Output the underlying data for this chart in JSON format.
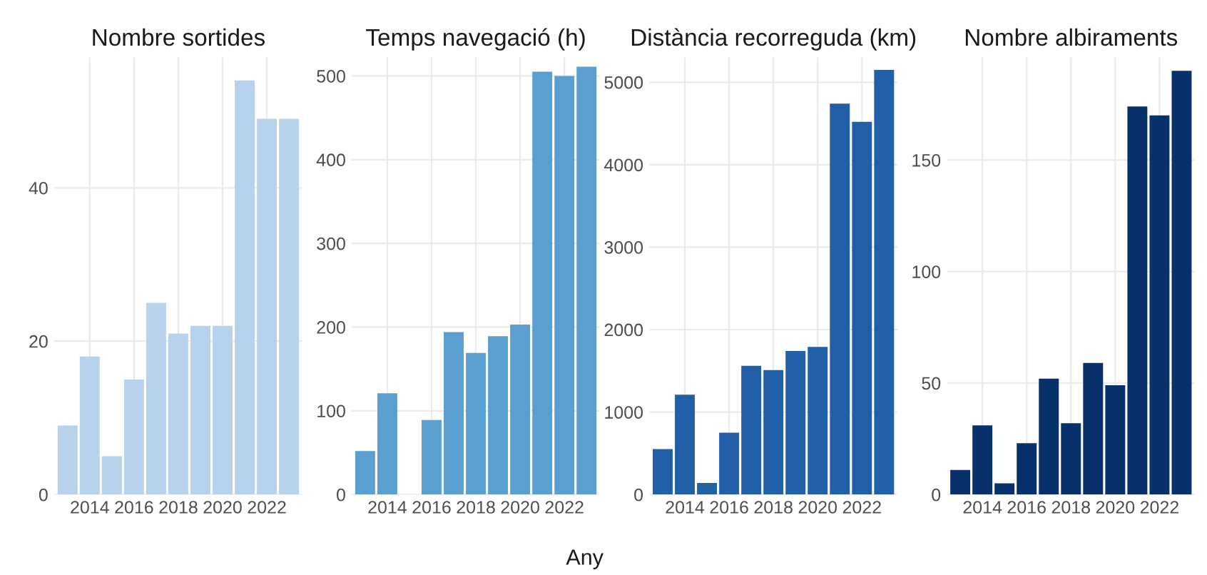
{
  "chart_data": [
    {
      "type": "bar",
      "title": "Nombre sortides",
      "x": [
        2013,
        2014,
        2015,
        2016,
        2017,
        2018,
        2019,
        2020,
        2021,
        2022,
        2023
      ],
      "series": [
        {
          "color": "#b9d2ec",
          "values": [
            9,
            18,
            5,
            15,
            25,
            21,
            22,
            22,
            54,
            49,
            49
          ]
        }
      ],
      "xlim": [
        2012.4,
        2023.6
      ],
      "xticks": [
        2014,
        2016,
        2018,
        2020,
        2022
      ],
      "ylim": [
        0,
        57
      ],
      "yticks": [
        0,
        20,
        40
      ],
      "grid": true
    },
    {
      "type": "bar",
      "title": "Temps navegació (h)",
      "xlabel": "Any",
      "x": [
        2013,
        2014,
        2015,
        2016,
        2017,
        2018,
        2019,
        2020,
        2021,
        2022,
        2023
      ],
      "series": [
        {
          "color": "#5a9fd0",
          "values": [
            52,
            121,
            null,
            89,
            194,
            169,
            189,
            203,
            505,
            500,
            511
          ]
        }
      ],
      "xlim": [
        2012.4,
        2023.6
      ],
      "xticks": [
        2014,
        2016,
        2018,
        2020,
        2022
      ],
      "ylim": [
        0,
        522
      ],
      "yticks": [
        0,
        100,
        200,
        300,
        400,
        500
      ],
      "grid": true
    },
    {
      "type": "bar",
      "title": "Distància recorreguda (km)",
      "x": [
        2013,
        2014,
        2015,
        2016,
        2017,
        2018,
        2019,
        2020,
        2021,
        2022,
        2023
      ],
      "series": [
        {
          "color": "#2160a8",
          "values": [
            550,
            1210,
            140,
            750,
            1560,
            1510,
            1740,
            1790,
            4740,
            4520,
            5150
          ]
        }
      ],
      "xlim": [
        2012.4,
        2023.6
      ],
      "xticks": [
        2014,
        2016,
        2018,
        2020,
        2022
      ],
      "ylim": [
        0,
        5300
      ],
      "yticks": [
        0,
        1000,
        2000,
        3000,
        4000,
        5000
      ],
      "grid": true
    },
    {
      "type": "bar",
      "title": "Nombre albiraments",
      "x": [
        2013,
        2014,
        2015,
        2016,
        2017,
        2018,
        2019,
        2020,
        2021,
        2022,
        2023
      ],
      "series": [
        {
          "color": "#08306b",
          "values": [
            11,
            31,
            5,
            23,
            52,
            32,
            59,
            49,
            174,
            170,
            190
          ]
        }
      ],
      "xlim": [
        2012.4,
        2023.6
      ],
      "xticks": [
        2014,
        2016,
        2018,
        2020,
        2022
      ],
      "ylim": [
        0,
        196
      ],
      "yticks": [
        0,
        50,
        100,
        150
      ],
      "grid": true
    }
  ]
}
